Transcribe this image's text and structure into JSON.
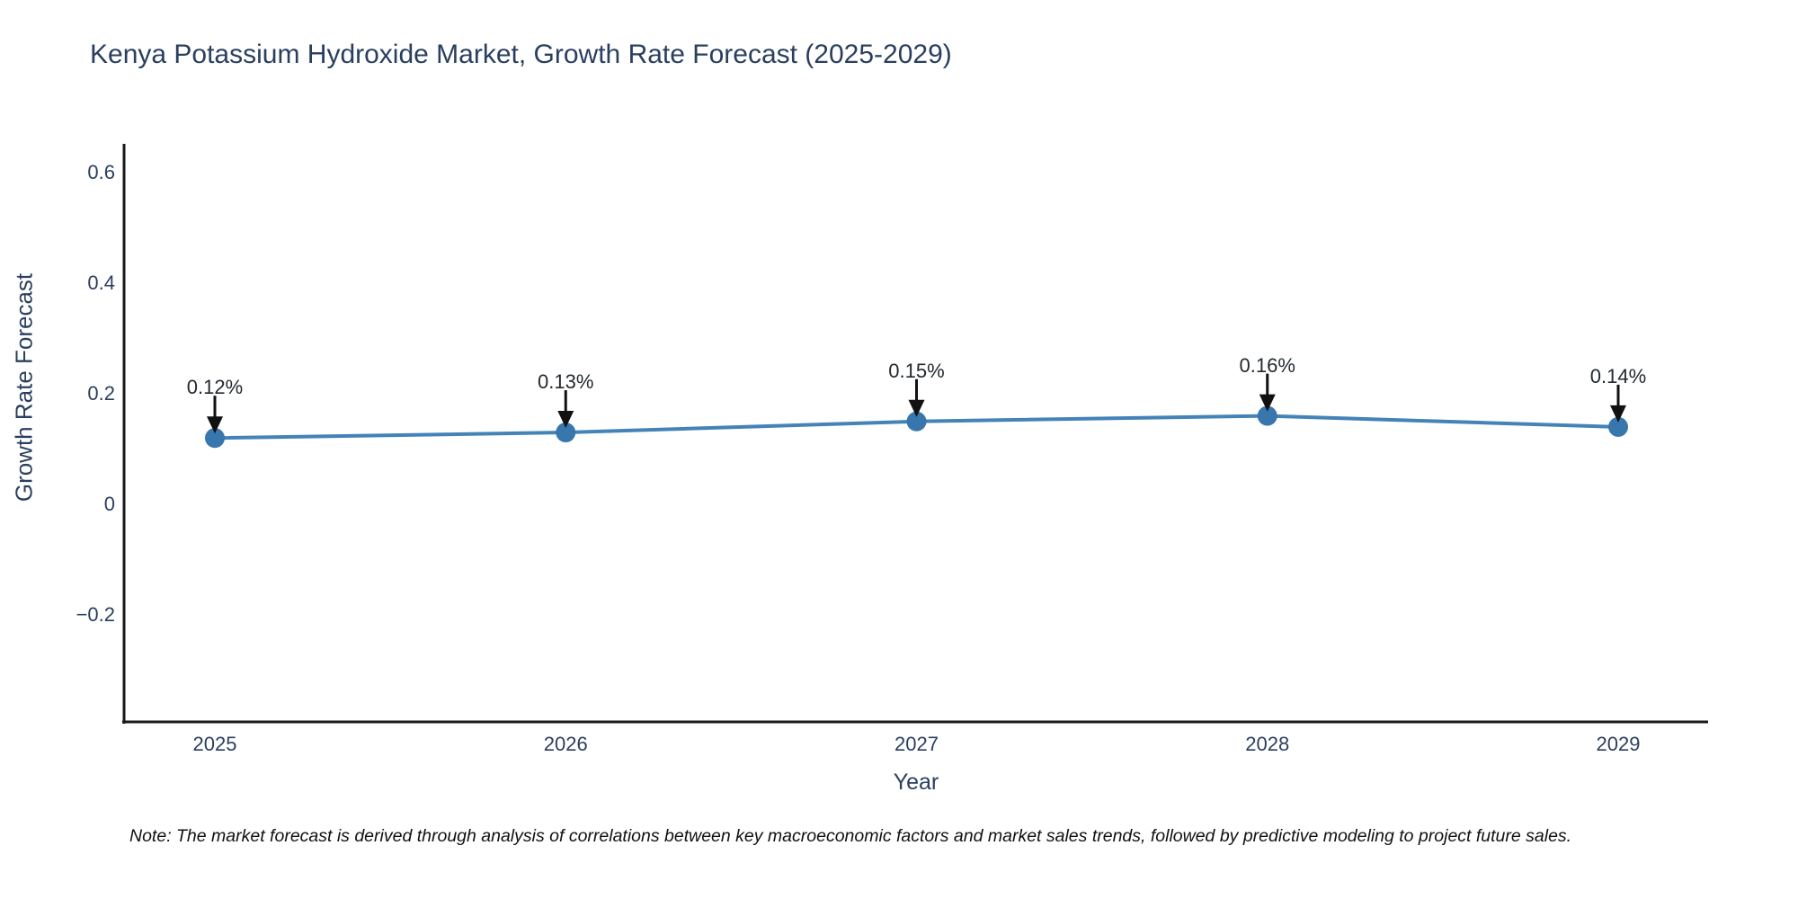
{
  "title": "Kenya Potassium Hydroxide Market, Growth Rate Forecast (2025-2029)",
  "note": "Note: The market forecast is derived through analysis of correlations between key macroeconomic factors and market sales trends, followed by predictive modeling to project future sales.",
  "chart_data": {
    "type": "line",
    "title": "Kenya Potassium Hydroxide Market, Growth Rate Forecast (2025-2029)",
    "xlabel": "Year",
    "ylabel": "Growth Rate Forecast",
    "categories": [
      "2025",
      "2026",
      "2027",
      "2028",
      "2029"
    ],
    "values": [
      0.12,
      0.13,
      0.15,
      0.16,
      0.14
    ],
    "point_labels": [
      "0.12%",
      "0.13%",
      "0.15%",
      "0.16%",
      "0.14%"
    ],
    "ytick_labels": [
      "0.6",
      "0.4",
      "0.2",
      "0",
      "−0.2"
    ],
    "ytick_values": [
      0.6,
      0.4,
      0.2,
      0,
      -0.2
    ],
    "ylim": [
      -0.4,
      0.66
    ],
    "grid": false,
    "legend": "none",
    "line_color": "#4383b8",
    "marker_color": "#3876ae",
    "axis_color": "#1a1a1a",
    "arrow_color": "#111111",
    "text_color": "#2a3f5f"
  }
}
